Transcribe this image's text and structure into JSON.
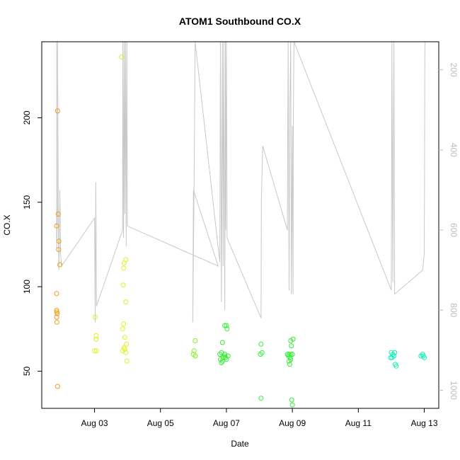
{
  "chart_data": {
    "type": "scatter",
    "title": "ATOM1 Southbound CO.X",
    "xlabel": "Date",
    "ylabel": "CO.X",
    "x_ticks": [
      "Aug 03",
      "Aug 05",
      "Aug 07",
      "Aug 09",
      "Aug 11",
      "Aug 13"
    ],
    "x_tick_values": [
      3,
      5,
      7,
      9,
      11,
      13
    ],
    "xlim": [
      1.4,
      13.44
    ],
    "y_ticks": [
      "50",
      "100",
      "150",
      "200"
    ],
    "y_tick_values": [
      50,
      100,
      150,
      200
    ],
    "ylim": [
      28,
      245
    ],
    "y2_ticks": [
      "200",
      "400",
      "600",
      "800",
      "1000"
    ],
    "y2_tick_values": [
      200,
      400,
      600,
      800,
      1000
    ],
    "y2lim": [
      130,
      1045
    ],
    "y2_reversed": true,
    "grid": false,
    "colors": {
      "orange": "#f29a1a",
      "yellow": "#e0f020",
      "green_light": "#8af020",
      "green": "#30f030",
      "cyan": "#10f0b8",
      "line_gray": "#c8c8c8",
      "axis_right": "#bdbdbd"
    },
    "points_series": [
      {
        "color": "#f29a1a",
        "points": [
          [
            1.88,
            204
          ],
          [
            1.9,
            143
          ],
          [
            1.85,
            136
          ],
          [
            1.92,
            127
          ],
          [
            1.91,
            122
          ],
          [
            1.95,
            113
          ],
          [
            1.85,
            96
          ],
          [
            1.85,
            86
          ],
          [
            1.86,
            85
          ],
          [
            1.87,
            84
          ],
          [
            1.85,
            82
          ],
          [
            1.86,
            79
          ],
          [
            1.88,
            41
          ]
        ]
      },
      {
        "color": "#e0f020",
        "points": [
          [
            3.02,
            82
          ],
          [
            3.05,
            71
          ],
          [
            3.05,
            69
          ],
          [
            3.0,
            62
          ],
          [
            3.06,
            62
          ],
          [
            3.82,
            236
          ],
          [
            3.95,
            116
          ],
          [
            3.9,
            114
          ],
          [
            3.88,
            111
          ],
          [
            3.87,
            101
          ],
          [
            3.95,
            91
          ],
          [
            3.88,
            78
          ],
          [
            3.85,
            75
          ],
          [
            3.92,
            70
          ],
          [
            3.97,
            66
          ],
          [
            3.9,
            64
          ],
          [
            3.85,
            62
          ],
          [
            3.95,
            61
          ],
          [
            3.92,
            63
          ],
          [
            3.98,
            56
          ]
        ]
      },
      {
        "color": "#8af020",
        "points": [
          [
            6.05,
            68
          ],
          [
            6.02,
            62
          ],
          [
            6.0,
            60
          ],
          [
            6.06,
            59
          ]
        ]
      },
      {
        "color": "#30f030",
        "points": [
          [
            6.95,
            77
          ],
          [
            7.0,
            77
          ],
          [
            7.02,
            75
          ],
          [
            6.88,
            67
          ],
          [
            6.8,
            60
          ],
          [
            6.85,
            61
          ],
          [
            6.95,
            60
          ],
          [
            7.05,
            59
          ],
          [
            6.9,
            58
          ],
          [
            6.97,
            58
          ],
          [
            7.0,
            57
          ],
          [
            6.82,
            57
          ],
          [
            6.88,
            56
          ],
          [
            6.85,
            55
          ],
          [
            6.95,
            59
          ],
          [
            8.05,
            66
          ],
          [
            8.08,
            61
          ],
          [
            8.03,
            60
          ],
          [
            8.05,
            34
          ],
          [
            8.85,
            60
          ],
          [
            8.88,
            59
          ],
          [
            8.9,
            60
          ],
          [
            8.93,
            58
          ],
          [
            8.95,
            57
          ],
          [
            8.9,
            56
          ],
          [
            8.92,
            54
          ],
          [
            8.95,
            60
          ],
          [
            9.0,
            60
          ],
          [
            9.02,
            69
          ],
          [
            8.95,
            68
          ],
          [
            8.97,
            65
          ],
          [
            8.98,
            33
          ],
          [
            9.0,
            30
          ]
        ]
      },
      {
        "color": "#10f0b8",
        "points": [
          [
            12.0,
            61
          ],
          [
            12.05,
            60
          ],
          [
            12.02,
            58
          ],
          [
            12.08,
            59
          ],
          [
            12.1,
            61
          ],
          [
            11.98,
            58
          ],
          [
            12.12,
            54
          ],
          [
            12.15,
            53
          ],
          [
            12.9,
            59
          ],
          [
            12.95,
            60
          ],
          [
            12.97,
            59
          ],
          [
            13.0,
            58
          ]
        ]
      }
    ],
    "line_series": {
      "color": "#c8c8c8",
      "axis": "right",
      "points": [
        [
          1.85,
          130
        ],
        [
          1.85,
          650
        ],
        [
          1.88,
          540
        ],
        [
          1.88,
          130
        ],
        [
          1.9,
          560
        ],
        [
          1.92,
          700
        ],
        [
          1.95,
          500
        ],
        [
          1.97,
          660
        ],
        [
          2.0,
          690
        ],
        [
          3.0,
          570
        ],
        [
          3.02,
          830
        ],
        [
          3.04,
          480
        ],
        [
          3.06,
          790
        ],
        [
          3.85,
          600
        ],
        [
          3.86,
          130
        ],
        [
          3.88,
          620
        ],
        [
          3.9,
          130
        ],
        [
          3.92,
          560
        ],
        [
          3.94,
          130
        ],
        [
          3.96,
          640
        ],
        [
          3.98,
          130
        ],
        [
          4.0,
          590
        ],
        [
          6.75,
          690
        ],
        [
          6.0,
          500
        ],
        [
          5.98,
          830
        ],
        [
          6.02,
          480
        ],
        [
          6.05,
          130
        ],
        [
          6.8,
          680
        ],
        [
          6.82,
          130
        ],
        [
          6.85,
          780
        ],
        [
          6.88,
          130
        ],
        [
          6.9,
          690
        ],
        [
          6.92,
          130
        ],
        [
          6.95,
          800
        ],
        [
          6.97,
          130
        ],
        [
          6.98,
          600
        ],
        [
          7.0,
          130
        ],
        [
          7.02,
          620
        ],
        [
          8.05,
          820
        ],
        [
          8.06,
          530
        ],
        [
          8.1,
          390
        ],
        [
          8.85,
          600
        ],
        [
          8.87,
          130
        ],
        [
          8.9,
          750
        ],
        [
          8.92,
          320
        ],
        [
          8.95,
          130
        ],
        [
          8.97,
          760
        ],
        [
          9.0,
          340
        ],
        [
          9.02,
          760
        ],
        [
          9.03,
          320
        ],
        [
          9.05,
          130
        ],
        [
          12.0,
          750
        ],
        [
          12.02,
          130
        ],
        [
          12.05,
          730
        ],
        [
          12.08,
          130
        ],
        [
          12.1,
          760
        ],
        [
          12.95,
          700
        ],
        [
          13.0,
          660
        ],
        [
          13.02,
          130
        ]
      ]
    }
  }
}
